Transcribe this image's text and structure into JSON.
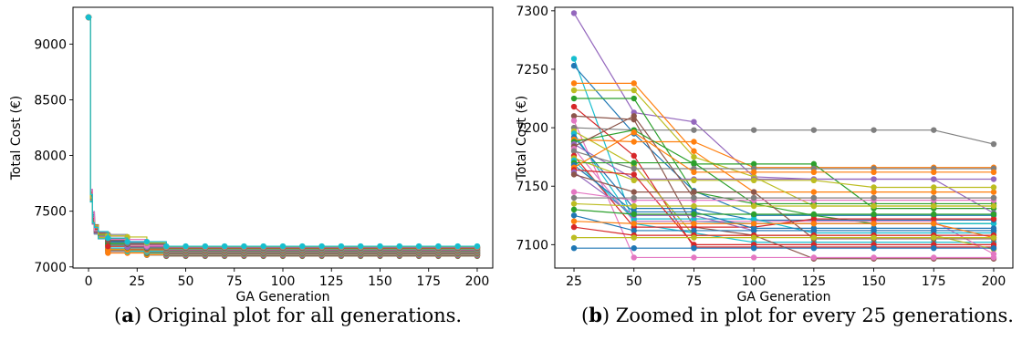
{
  "chart_data": [
    {
      "type": "line",
      "panel": "a",
      "xlabel": "GA Generation",
      "ylabel": "Total Cost (€)",
      "xlim": [
        -8,
        208
      ],
      "ylim": [
        6990,
        9330
      ],
      "xticks": [
        "0",
        "25",
        "50",
        "75",
        "100",
        "125",
        "150",
        "175",
        "200"
      ],
      "yticks": [
        "7000",
        "7500",
        "8000",
        "8500",
        "9000"
      ],
      "grid": false,
      "legend": "none",
      "start_value": 9240,
      "x": [
        0,
        1,
        2,
        3,
        5,
        10,
        20,
        30,
        40,
        50,
        60,
        70,
        80,
        90,
        100,
        110,
        120,
        130,
        140,
        150,
        160,
        170,
        180,
        190,
        200
      ],
      "final_range": [
        7097,
        7186
      ],
      "caption_label": "a",
      "caption_text": "Original plot for all generations."
    },
    {
      "type": "line",
      "panel": "b",
      "xlabel": "GA Generation",
      "ylabel": "Total Cost (€)",
      "xlim": [
        17,
        208
      ],
      "ylim": [
        7080,
        7303
      ],
      "xticks": [
        "25",
        "50",
        "75",
        "100",
        "125",
        "150",
        "175",
        "200"
      ],
      "yticks": [
        "7100",
        "7150",
        "7200",
        "7250",
        "7300"
      ],
      "grid": false,
      "legend": "none",
      "x": [
        25,
        50,
        75,
        100,
        125,
        150,
        175,
        200
      ],
      "series": [
        {
          "color": "#9467bd",
          "values": [
            7298,
            7213,
            7205,
            7158,
            7156,
            7156,
            7156,
            7156
          ]
        },
        {
          "color": "#17becf",
          "values": [
            7259,
            7118,
            7110,
            7102,
            7102,
            7102,
            7102,
            7102
          ]
        },
        {
          "color": "#1f77b4",
          "values": [
            7253,
            7195,
            7146,
            7125,
            7125,
            7125,
            7125,
            7125
          ]
        },
        {
          "color": "#ff7f0e",
          "values": [
            7238,
            7238,
            7180,
            7145,
            7145,
            7145,
            7145,
            7145
          ]
        },
        {
          "color": "#bcbd22",
          "values": [
            7232,
            7232,
            7175,
            7158,
            7133,
            7133,
            7133,
            7133
          ]
        },
        {
          "color": "#2ca02c",
          "values": [
            7225,
            7225,
            7145,
            7135,
            7125,
            7118,
            7118,
            7118
          ]
        },
        {
          "color": "#d62728",
          "values": [
            7218,
            7176,
            7098,
            7098,
            7098,
            7098,
            7098,
            7098
          ]
        },
        {
          "color": "#8c564b",
          "values": [
            7210,
            7207,
            7115,
            7108,
            7088,
            7088,
            7088,
            7088
          ]
        },
        {
          "color": "#e377c2",
          "values": [
            7206,
            7089,
            7089,
            7089,
            7089,
            7089,
            7089,
            7089
          ]
        },
        {
          "color": "#7f7f7f",
          "values": [
            7200,
            7198,
            7198,
            7198,
            7198,
            7198,
            7198,
            7186
          ]
        },
        {
          "color": "#bcbd22",
          "values": [
            7197,
            7168,
            7108,
            7108,
            7108,
            7108,
            7108,
            7096
          ]
        },
        {
          "color": "#17becf",
          "values": [
            7195,
            7120,
            7120,
            7118,
            7118,
            7118,
            7118,
            7118
          ]
        },
        {
          "color": "#1f77b4",
          "values": [
            7192,
            7131,
            7131,
            7121,
            7121,
            7121,
            7121,
            7121
          ]
        },
        {
          "color": "#ff7f0e",
          "values": [
            7190,
            7188,
            7188,
            7166,
            7166,
            7166,
            7166,
            7166
          ]
        },
        {
          "color": "#2ca02c",
          "values": [
            7188,
            7198,
            7169,
            7169,
            7169,
            7131,
            7131,
            7131
          ]
        },
        {
          "color": "#9467bd",
          "values": [
            7186,
            7156,
            7156,
            7156,
            7156,
            7156,
            7156,
            7127
          ]
        },
        {
          "color": "#8c564b",
          "values": [
            7184,
            7210,
            7140,
            7140,
            7140,
            7140,
            7140,
            7140
          ]
        },
        {
          "color": "#e377c2",
          "values": [
            7182,
            7120,
            7120,
            7120,
            7120,
            7120,
            7120,
            7092
          ]
        },
        {
          "color": "#7f7f7f",
          "values": [
            7180,
            7165,
            7165,
            7165,
            7165,
            7165,
            7165,
            7165
          ]
        },
        {
          "color": "#d62728",
          "values": [
            7176,
            7115,
            7115,
            7115,
            7122,
            7122,
            7122,
            7122
          ]
        },
        {
          "color": "#bcbd22",
          "values": [
            7174,
            7155,
            7155,
            7155,
            7155,
            7149,
            7149,
            7149
          ]
        },
        {
          "color": "#17becf",
          "values": [
            7172,
            7122,
            7122,
            7122,
            7110,
            7110,
            7110,
            7110
          ]
        },
        {
          "color": "#2ca02c",
          "values": [
            7170,
            7170,
            7170,
            7135,
            7135,
            7135,
            7135,
            7135
          ]
        },
        {
          "color": "#1f77b4",
          "values": [
            7168,
            7128,
            7128,
            7114,
            7114,
            7114,
            7114,
            7114
          ]
        },
        {
          "color": "#ff7f0e",
          "values": [
            7166,
            7196,
            7162,
            7162,
            7162,
            7162,
            7162,
            7162
          ]
        },
        {
          "color": "#d62728",
          "values": [
            7164,
            7160,
            7100,
            7100,
            7100,
            7100,
            7100,
            7100
          ]
        },
        {
          "color": "#9467bd",
          "values": [
            7162,
            7125,
            7125,
            7112,
            7112,
            7112,
            7112,
            7112
          ]
        },
        {
          "color": "#8c564b",
          "values": [
            7160,
            7145,
            7145,
            7145,
            7105,
            7105,
            7105,
            7105
          ]
        },
        {
          "color": "#e377c2",
          "values": [
            7145,
            7138,
            7138,
            7138,
            7138,
            7138,
            7138,
            7138
          ]
        },
        {
          "color": "#7f7f7f",
          "values": [
            7140,
            7140,
            7140,
            7140,
            7140,
            7140,
            7140,
            7140
          ]
        },
        {
          "color": "#bcbd22",
          "values": [
            7135,
            7133,
            7133,
            7133,
            7133,
            7133,
            7133,
            7133
          ]
        },
        {
          "color": "#2ca02c",
          "values": [
            7130,
            7126,
            7126,
            7126,
            7126,
            7126,
            7126,
            7126
          ]
        },
        {
          "color": "#1f77b4",
          "values": [
            7125,
            7112,
            7112,
            7112,
            7112,
            7112,
            7112,
            7112
          ]
        },
        {
          "color": "#ff7f0e",
          "values": [
            7120,
            7118,
            7118,
            7118,
            7118,
            7118,
            7118,
            7106
          ]
        },
        {
          "color": "#d62728",
          "values": [
            7115,
            7108,
            7108,
            7108,
            7108,
            7108,
            7108,
            7108
          ]
        },
        {
          "color": "#bcbd22",
          "values": [
            7106,
            7106,
            7106,
            7106,
            7106,
            7106,
            7106,
            7106
          ]
        },
        {
          "color": "#1f77b4",
          "values": [
            7097,
            7097,
            7097,
            7097,
            7097,
            7097,
            7097,
            7097
          ]
        }
      ],
      "caption_label": "b",
      "caption_text": "Zoomed in plot for every 25 generations."
    }
  ]
}
